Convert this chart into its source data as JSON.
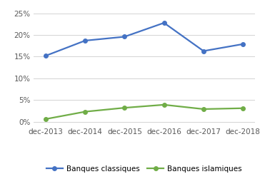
{
  "categories": [
    "dec-2013",
    "dec-2014",
    "dec-2015",
    "dec-2016",
    "dec-2017",
    "dec-2018"
  ],
  "banques_classiques": [
    0.152,
    0.187,
    0.196,
    0.228,
    0.163,
    0.179
  ],
  "banques_islamiques": [
    0.006,
    0.023,
    0.032,
    0.039,
    0.029,
    0.031
  ],
  "color_classiques": "#4472C4",
  "color_islamiques": "#70AD47",
  "yticks": [
    0.0,
    0.05,
    0.1,
    0.15,
    0.2,
    0.25
  ],
  "ylim": [
    -0.008,
    0.268
  ],
  "legend_classiques": "Banques classiques",
  "legend_islamiques": "Banques islamiques",
  "bg_color": "#FFFFFF",
  "grid_color": "#D3D3D3",
  "marker": "o",
  "marker_size": 4,
  "line_width": 1.6,
  "tick_fontsize": 7.5,
  "legend_fontsize": 7.5
}
